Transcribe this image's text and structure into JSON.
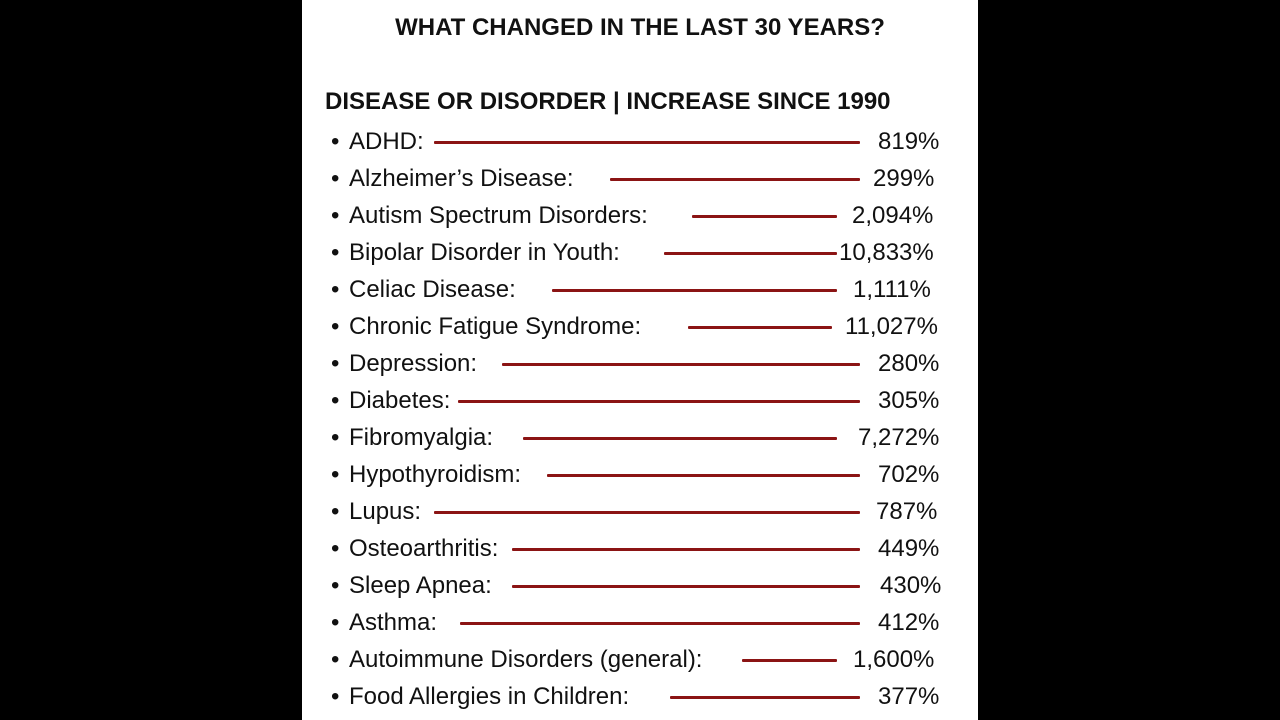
{
  "title": "WHAT CHANGED IN THE LAST 30 YEARS?",
  "header": "DISEASE OR DISORDER | INCREASE SINCE 1990",
  "bullet": "•",
  "line_color": "#8b1414",
  "items": [
    {
      "label": "ADHD:",
      "value": "819%"
    },
    {
      "label": "Alzheimer’s Disease:",
      "value": "299%"
    },
    {
      "label": "Autism Spectrum Disorders:",
      "value": "2,094%"
    },
    {
      "label": "Bipolar Disorder in Youth:",
      "value": "10,833%"
    },
    {
      "label": "Celiac Disease:",
      "value": "1,111%"
    },
    {
      "label": "Chronic Fatigue Syndrome:",
      "value": "11,027%"
    },
    {
      "label": "Depression:",
      "value": "280%"
    },
    {
      "label": "Diabetes:",
      "value": "305%"
    },
    {
      "label": "Fibromyalgia:",
      "value": "7,272%"
    },
    {
      "label": "Hypothyroidism:",
      "value": "702%"
    },
    {
      "label": "Lupus:",
      "value": "787%"
    },
    {
      "label": "Osteoarthritis:",
      "value": "449%"
    },
    {
      "label": "Sleep Apnea:",
      "value": "430%"
    },
    {
      "label": "Asthma:",
      "value": "412%"
    },
    {
      "label": "Autoimmune Disorders (general):",
      "value": "1,600%"
    },
    {
      "label": "Food Allergies in Children:",
      "value": "377%"
    }
  ]
}
